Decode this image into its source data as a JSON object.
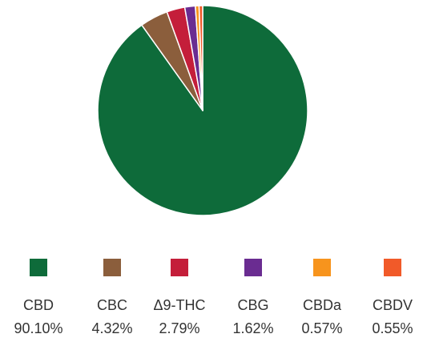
{
  "chart_data": {
    "type": "pie",
    "title": "",
    "series": [
      {
        "label": "CBD",
        "value": 90.1,
        "display": "90.10%",
        "color": "#0E6B3A"
      },
      {
        "label": "CBC",
        "value": 4.32,
        "display": "4.32%",
        "color": "#8B5E3C"
      },
      {
        "label": "Δ9-THC",
        "value": 2.79,
        "display": "2.79%",
        "color": "#C41E3A"
      },
      {
        "label": "CBG",
        "value": 1.62,
        "display": "1.62%",
        "color": "#6A2C91"
      },
      {
        "label": "CBDa",
        "value": 0.57,
        "display": "0.57%",
        "color": "#F7941D"
      },
      {
        "label": "CBDV",
        "value": 0.55,
        "display": "0.55%",
        "color": "#F15A29"
      }
    ],
    "legend_placement": "bottom"
  }
}
